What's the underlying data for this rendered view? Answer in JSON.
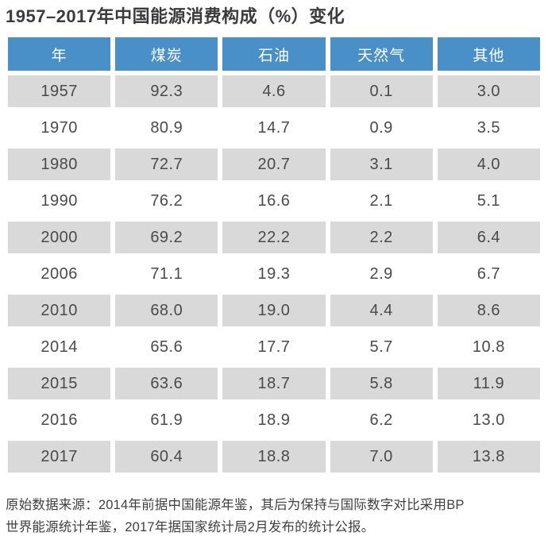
{
  "page": {
    "title": "1957–2017年中国能源消费构成（%）变化",
    "source_note_line1": "原始数据来源：2014年前据中国能源年鉴，其后为保持与国际数字对比采用BP",
    "source_note_line2": "世界能源统计年鉴，2017年据国家统计局2月发布的统计公报。"
  },
  "colors": {
    "header_bg": "#4a90c8",
    "header_text": "#ffffff",
    "row_alt_bg": "#d9d9d9",
    "title_text": "#3b3b3b",
    "body_text": "#4a4a4a"
  },
  "chart_data": {
    "type": "table",
    "title": "1957–2017年中国能源消费构成（%）变化",
    "unit": "%",
    "columns": [
      "年",
      "煤炭",
      "石油",
      "天然气",
      "其他"
    ],
    "rows": [
      [
        "1957",
        "92.3",
        "4.6",
        "0.1",
        "3.0"
      ],
      [
        "1970",
        "80.9",
        "14.7",
        "0.9",
        "3.5"
      ],
      [
        "1980",
        "72.7",
        "20.7",
        "3.1",
        "4.0"
      ],
      [
        "1990",
        "76.2",
        "16.6",
        "2.1",
        "5.1"
      ],
      [
        "2000",
        "69.2",
        "22.2",
        "2.2",
        "6.4"
      ],
      [
        "2006",
        "71.1",
        "19.3",
        "2.9",
        "6.7"
      ],
      [
        "2010",
        "68.0",
        "19.0",
        "4.4",
        "8.6"
      ],
      [
        "2014",
        "65.6",
        "17.7",
        "5.7",
        "10.8"
      ],
      [
        "2015",
        "63.6",
        "18.7",
        "5.8",
        "11.9"
      ],
      [
        "2016",
        "61.9",
        "18.9",
        "6.2",
        "13.0"
      ],
      [
        "2017",
        "60.4",
        "18.8",
        "7.0",
        "13.8"
      ]
    ],
    "source_note": "原始数据来源：2014年前据中国能源年鉴，其后为保持与国际数字对比采用BP世界能源统计年鉴，2017年据国家统计局2月发布的统计公报。",
    "layout": {
      "header_position": "top",
      "striped": "odd-rows-gray",
      "grid": "white-gaps-between-cells"
    }
  }
}
